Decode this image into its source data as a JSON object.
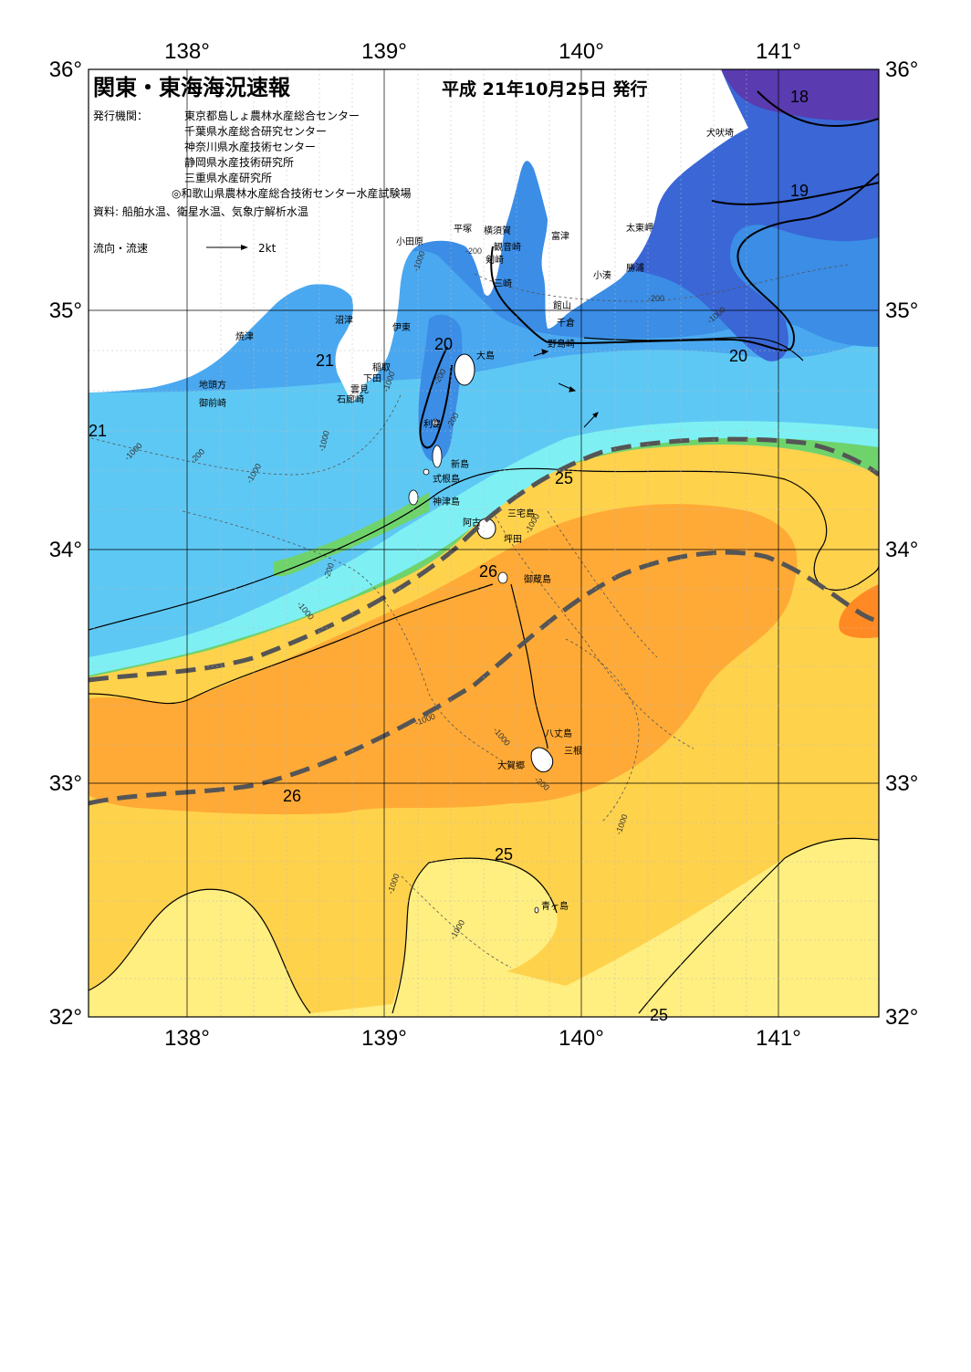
{
  "header": {
    "title": "関東・東海海況速報",
    "date": "平成 21年10月25日 発行",
    "publishers_label": "発行機関：",
    "publishers": [
      "東京都島しょ農林水産総合センター",
      "千葉県水産総合研究センター",
      "神奈川県水産技術センター",
      "静岡県水産技術研究所",
      "三重県水産研究所",
      "◎和歌山県農林水産総合技術センター水産試験場"
    ],
    "sources": "資料: 船舶水温、衛星水温、気象庁解析水温",
    "legend_label": "流向・流速",
    "legend_speed": "2kt"
  },
  "axes": {
    "top_lon": [
      "138°",
      "139°",
      "140°",
      "141°"
    ],
    "bottom_lon": [
      "138°",
      "139°",
      "140°",
      "141°"
    ],
    "left_lat": [
      "36°",
      "35°",
      "34°",
      "33°",
      "32°"
    ],
    "right_lat": [
      "36°",
      "35°",
      "34°",
      "33°",
      "32°"
    ]
  },
  "isotherms": [
    "18",
    "19",
    "20",
    "20",
    "21",
    "21",
    "25",
    "26",
    "26",
    "25",
    "25"
  ],
  "depth_labels": [
    "-200",
    "-200",
    "-1000",
    "-1000",
    "-200",
    "-1000",
    "-200",
    "-1000",
    "-200",
    "-1000",
    "-1000",
    "-200",
    "-1000",
    "-1000",
    "-1000",
    "-200",
    "-1000",
    "-1000",
    "-1000",
    "-1000"
  ],
  "places": [
    "犬吠埼",
    "太東岬",
    "勝浦",
    "小湊",
    "富津",
    "横須賀",
    "観音崎",
    "剣崎",
    "三崎",
    "平塚",
    "小田原",
    "館山",
    "千倉",
    "野島崎",
    "大島",
    "沼津",
    "焼津",
    "伊東",
    "稲取",
    "下田",
    "雲見",
    "石廊崎",
    "地頭方",
    "御前崎",
    "利島",
    "新島",
    "式根島",
    "神津島",
    "三宅島",
    "阿古",
    "坪田",
    "御蔵島",
    "八丈島",
    "三根",
    "大賀郷",
    "青ヶ島"
  ],
  "colors": {
    "sst_18": "#5a3bb0",
    "sst_19": "#3a66d6",
    "sst_20": "#3b8de6",
    "sst_21": "#4aa8f0",
    "sst_22": "#5ec8f4",
    "sst_23": "#7ef0f4",
    "sst_24": "#6fd36c",
    "sst_25": "#ffd24c",
    "sst_26": "#ffaa36",
    "sst_27": "#ff8a24",
    "sst_low": "#ffee80",
    "land": "#ffffff",
    "kuroshio_axis": "#555555"
  }
}
